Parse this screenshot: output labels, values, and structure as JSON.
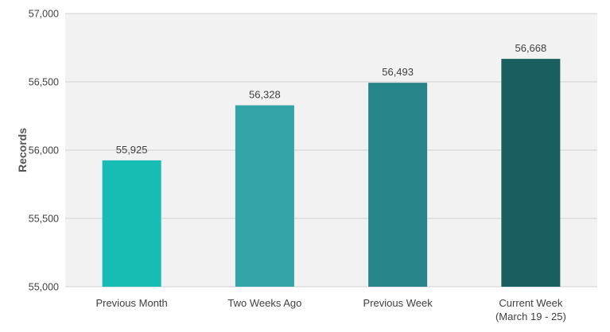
{
  "chart_data": {
    "type": "bar",
    "title": "",
    "xlabel": "",
    "ylabel": "Records",
    "ylim": [
      55000,
      57000
    ],
    "yticks": [
      55000,
      55500,
      56000,
      56500,
      57000
    ],
    "ytick_labels": [
      "55,000",
      "55,500",
      "56,000",
      "56,500",
      "57,000"
    ],
    "grid": true,
    "categories": [
      [
        "Previous Month"
      ],
      [
        "Two Weeks Ago"
      ],
      [
        "Previous Week"
      ],
      [
        "Current Week",
        "(March 19 - 25)"
      ]
    ],
    "values": [
      55925,
      56328,
      56493,
      56668
    ],
    "value_labels": [
      "55,925",
      "56,328",
      "56,493",
      "56,668"
    ],
    "colors": [
      "#17bcb4",
      "#32a3a6",
      "#278489",
      "#1a5f5f"
    ]
  }
}
